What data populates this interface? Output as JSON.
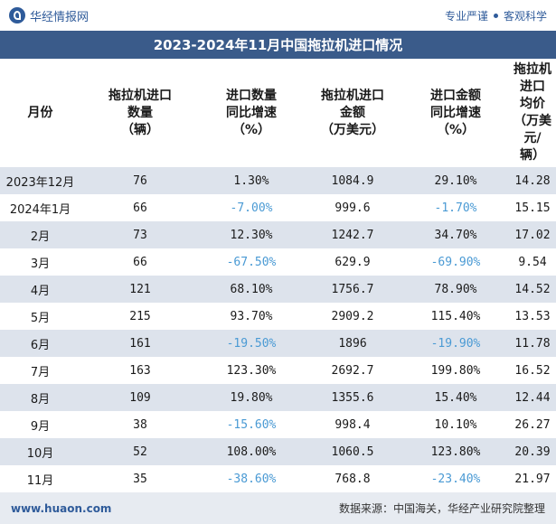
{
  "brand": {
    "name": "华经情报网"
  },
  "slogan": {
    "left": "专业严谨",
    "right": "客观科学"
  },
  "title": "2023-2024年11月中国拖拉机进口情况",
  "headers": [
    "月份",
    "拖拉机进口\n数量\n（辆）",
    "进口数量\n同比增速\n（%）",
    "拖拉机进口\n金额\n（万美元）",
    "进口金额\n同比增速\n（%）",
    "拖拉机进口\n均价\n（万美元/\n辆）"
  ],
  "rows": [
    {
      "month": "2023年12月",
      "qty": "76",
      "qty_yoy": "1.30%",
      "amount": "1084.9",
      "amount_yoy": "29.10%",
      "price": "14.28"
    },
    {
      "month": "2024年1月",
      "qty": "66",
      "qty_yoy": "-7.00%",
      "amount": "999.6",
      "amount_yoy": "-1.70%",
      "price": "15.15"
    },
    {
      "month": "2月",
      "qty": "73",
      "qty_yoy": "12.30%",
      "amount": "1242.7",
      "amount_yoy": "34.70%",
      "price": "17.02"
    },
    {
      "month": "3月",
      "qty": "66",
      "qty_yoy": "-67.50%",
      "amount": "629.9",
      "amount_yoy": "-69.90%",
      "price": "9.54"
    },
    {
      "month": "4月",
      "qty": "121",
      "qty_yoy": "68.10%",
      "amount": "1756.7",
      "amount_yoy": "78.90%",
      "price": "14.52"
    },
    {
      "month": "5月",
      "qty": "215",
      "qty_yoy": "93.70%",
      "amount": "2909.2",
      "amount_yoy": "115.40%",
      "price": "13.53"
    },
    {
      "month": "6月",
      "qty": "161",
      "qty_yoy": "-19.50%",
      "amount": "1896",
      "amount_yoy": "-19.90%",
      "price": "11.78"
    },
    {
      "month": "7月",
      "qty": "163",
      "qty_yoy": "123.30%",
      "amount": "2692.7",
      "amount_yoy": "199.80%",
      "price": "16.52"
    },
    {
      "month": "8月",
      "qty": "109",
      "qty_yoy": "19.80%",
      "amount": "1355.6",
      "amount_yoy": "15.40%",
      "price": "12.44"
    },
    {
      "month": "9月",
      "qty": "38",
      "qty_yoy": "-15.60%",
      "amount": "998.4",
      "amount_yoy": "10.10%",
      "price": "26.27"
    },
    {
      "month": "10月",
      "qty": "52",
      "qty_yoy": "108.00%",
      "amount": "1060.5",
      "amount_yoy": "123.80%",
      "price": "20.39"
    },
    {
      "month": "11月",
      "qty": "35",
      "qty_yoy": "-38.60%",
      "amount": "768.8",
      "amount_yoy": "-23.40%",
      "price": "21.97"
    }
  ],
  "colors": {
    "title_bg": "#3a5b8a",
    "stripe": "#dde3ec",
    "negative": "#4a9ad4",
    "brand": "#2f5b9a"
  },
  "footer": {
    "site": "www.huaon.com",
    "source": "数据来源：中国海关，华经产业研究院整理"
  }
}
